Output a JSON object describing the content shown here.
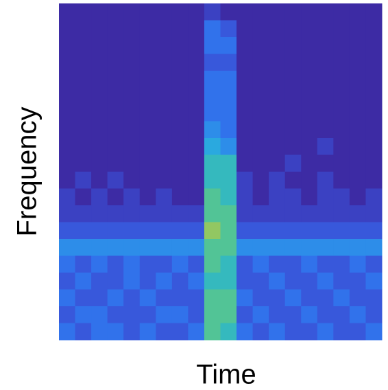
{
  "chart_data": {
    "type": "heatmap",
    "x_label": "Time",
    "y_label": "Frequency",
    "zlim": [
      0,
      10
    ],
    "colormap": [
      "#3d2ba4",
      "#3a4fd6",
      "#2f7bf0",
      "#2aa9df",
      "#3cc3a8",
      "#a8c850",
      "#f9fb15"
    ],
    "values": [
      [
        0,
        0,
        0,
        0,
        0,
        0,
        0,
        0,
        0,
        1,
        0,
        0,
        0,
        0,
        0,
        0,
        0,
        0,
        0,
        0
      ],
      [
        0,
        0,
        0,
        0,
        0,
        0,
        0,
        0,
        0,
        3,
        2,
        0,
        0,
        0,
        0,
        0,
        0,
        0,
        0,
        0
      ],
      [
        0,
        0,
        0,
        0,
        0,
        0,
        0,
        0,
        0,
        3,
        3,
        0,
        0,
        0,
        0,
        0,
        0,
        0,
        0,
        0
      ],
      [
        0,
        0,
        0,
        0,
        0,
        0,
        0,
        0,
        0,
        2,
        2,
        0,
        0,
        0,
        0,
        0,
        0,
        0,
        0,
        0
      ],
      [
        0,
        0,
        0,
        0,
        0,
        0,
        0,
        0,
        0,
        3,
        3,
        0,
        0,
        0,
        0,
        0,
        0,
        0,
        0,
        0
      ],
      [
        0,
        0,
        0,
        0,
        0,
        0,
        0,
        0,
        0,
        3,
        3,
        0,
        0,
        0,
        0,
        0,
        0,
        0,
        0,
        0
      ],
      [
        0,
        0,
        0,
        0,
        0,
        0,
        0,
        0,
        0,
        3,
        3,
        0,
        0,
        0,
        0,
        0,
        0,
        0,
        0,
        0
      ],
      [
        0,
        0,
        0,
        0,
        0,
        0,
        0,
        0,
        0,
        4,
        3,
        0,
        0,
        0,
        0,
        0,
        0,
        0,
        0,
        0
      ],
      [
        0,
        0,
        0,
        0,
        0,
        0,
        0,
        0,
        0,
        5,
        4,
        0,
        0,
        0,
        0,
        0,
        1,
        0,
        0,
        0
      ],
      [
        0,
        0,
        0,
        0,
        0,
        0,
        0,
        0,
        0,
        6,
        6,
        0,
        0,
        0,
        1,
        0,
        0,
        0,
        0,
        0
      ],
      [
        0,
        1,
        0,
        1,
        0,
        0,
        0,
        0,
        0,
        6,
        6,
        1,
        0,
        1,
        0,
        0,
        1,
        0,
        0,
        0
      ],
      [
        1,
        0,
        1,
        0,
        1,
        0,
        1,
        0,
        0,
        7,
        6,
        1,
        0,
        1,
        1,
        0,
        1,
        1,
        0,
        1
      ],
      [
        1,
        1,
        1,
        1,
        1,
        1,
        1,
        1,
        1,
        7,
        7,
        1,
        1,
        1,
        1,
        1,
        1,
        1,
        1,
        1
      ],
      [
        2,
        2,
        2,
        2,
        2,
        2,
        2,
        2,
        2,
        8,
        7,
        2,
        2,
        2,
        2,
        2,
        2,
        2,
        2,
        2
      ],
      [
        4,
        4,
        4,
        4,
        4,
        4,
        4,
        4,
        4,
        7,
        7,
        4,
        4,
        4,
        4,
        4,
        4,
        4,
        4,
        4
      ],
      [
        3,
        2,
        3,
        2,
        3,
        2,
        2,
        3,
        2,
        7,
        6,
        2,
        3,
        2,
        2,
        3,
        2,
        2,
        3,
        2
      ],
      [
        2,
        3,
        2,
        2,
        3,
        2,
        3,
        2,
        3,
        6,
        6,
        2,
        2,
        3,
        2,
        2,
        3,
        2,
        2,
        3
      ],
      [
        3,
        2,
        2,
        3,
        2,
        3,
        2,
        2,
        2,
        7,
        7,
        3,
        2,
        2,
        3,
        2,
        2,
        3,
        2,
        2
      ],
      [
        2,
        3,
        3,
        2,
        2,
        2,
        3,
        3,
        2,
        7,
        7,
        2,
        3,
        2,
        2,
        3,
        2,
        2,
        3,
        2
      ],
      [
        3,
        2,
        3,
        3,
        2,
        3,
        2,
        2,
        3,
        7,
        6,
        3,
        2,
        3,
        2,
        2,
        3,
        2,
        2,
        3
      ]
    ]
  }
}
